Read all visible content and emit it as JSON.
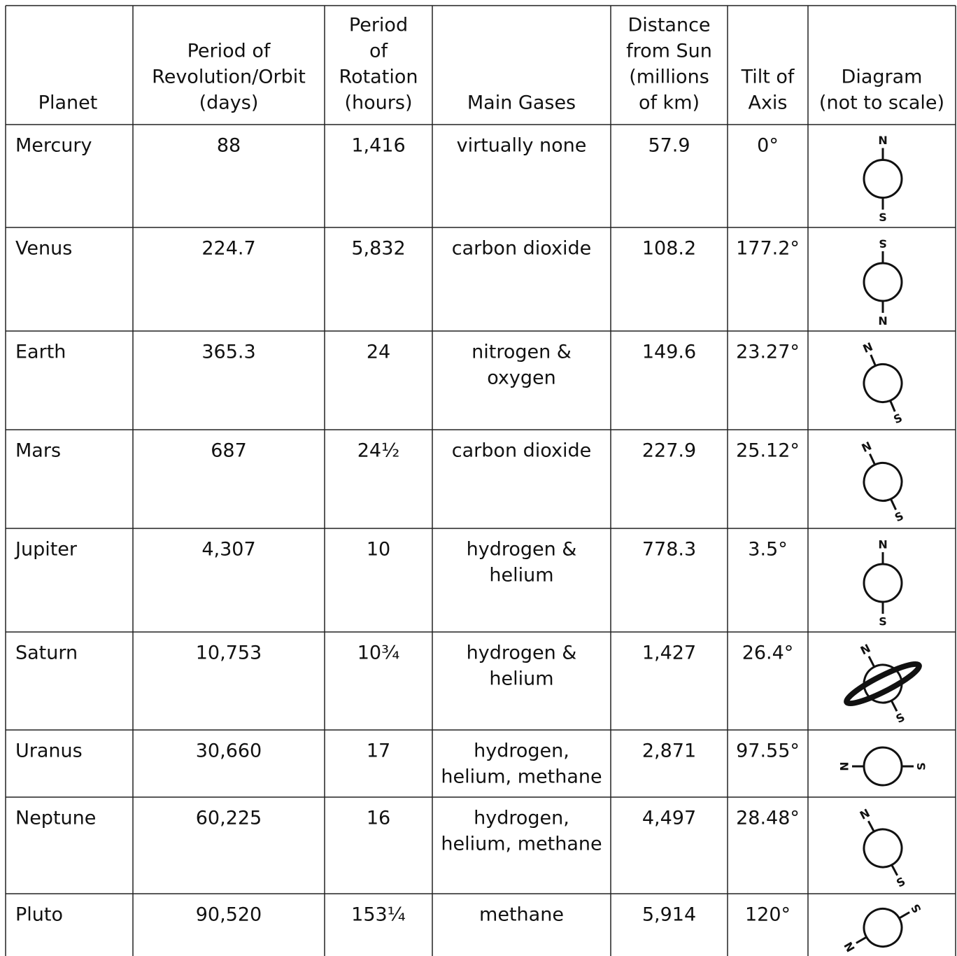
{
  "table": {
    "headers": [
      [
        "Planet"
      ],
      [
        "Period of",
        "Revolution/Orbit",
        "(days)"
      ],
      [
        "Period",
        "of",
        "Rotation",
        "(hours)"
      ],
      [
        "Main Gases"
      ],
      [
        "Distance",
        "from Sun",
        "(millions",
        "of km)"
      ],
      [
        "Tilt of",
        "Axis"
      ],
      [
        "Diagram",
        "(not to scale)"
      ]
    ],
    "rows": [
      [
        "Mercury",
        "88",
        "1,416",
        [
          "virtually none"
        ],
        "57.9",
        "0°"
      ],
      [
        "Venus",
        "224.7",
        "5,832",
        [
          "carbon dioxide"
        ],
        "108.2",
        "177.2°"
      ],
      [
        "Earth",
        "365.3",
        "24",
        [
          "nitrogen &",
          "oxygen"
        ],
        "149.6",
        "23.27°"
      ],
      [
        "Mars",
        "687",
        "24½",
        [
          "carbon dioxide"
        ],
        "227.9",
        "25.12°"
      ],
      [
        "Jupiter",
        "4,307",
        "10",
        [
          "hydrogen &",
          "helium"
        ],
        "778.3",
        "3.5°"
      ],
      [
        "Saturn",
        "10,753",
        "10¾",
        [
          "hydrogen &",
          "helium"
        ],
        "1,427",
        "26.4°"
      ],
      [
        "Uranus",
        "30,660",
        "17",
        [
          "hydrogen,",
          "helium, methane"
        ],
        "2,871",
        "97.55°"
      ],
      [
        "Neptune",
        "60,225",
        "16",
        [
          "hydrogen,",
          "helium, methane"
        ],
        "4,497",
        "28.48°"
      ],
      [
        "Pluto",
        "90,520",
        "153¼",
        [
          "methane"
        ],
        "5,914",
        "120°"
      ]
    ],
    "diagram_labels": {
      "north": "N",
      "south": "S"
    }
  }
}
